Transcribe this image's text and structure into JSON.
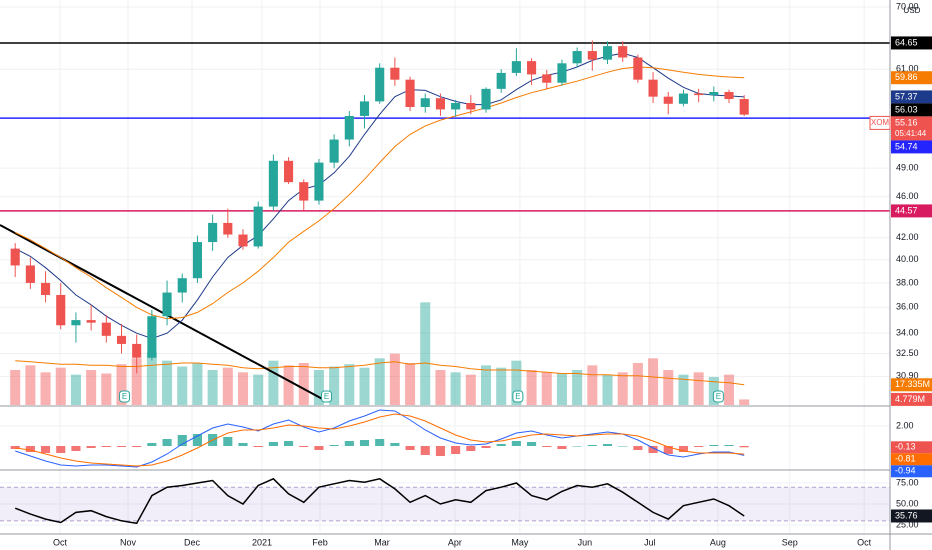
{
  "chart_data": {
    "type": "candlestick",
    "symbol": "XOM",
    "currency": "USD",
    "countdown": "05:41:44",
    "xlim": [
      -1,
      57.6
    ],
    "xticks": [
      {
        "value": 2.95,
        "label": "Oct"
      },
      {
        "value": 7.43,
        "label": "Nov"
      },
      {
        "value": 11.64,
        "label": "Dec"
      },
      {
        "value": 16.25,
        "label": "2021"
      },
      {
        "value": 20.07,
        "label": "Feb"
      },
      {
        "value": 24.15,
        "label": "Mar"
      },
      {
        "value": 28.95,
        "label": "Apr"
      },
      {
        "value": 33.23,
        "label": "May"
      },
      {
        "value": 37.51,
        "label": "Jun"
      },
      {
        "value": 41.79,
        "label": "Jul"
      },
      {
        "value": 46.27,
        "label": "Aug"
      },
      {
        "value": 51.0,
        "label": "Sep"
      },
      {
        "value": 55.9,
        "label": "Oct"
      }
    ],
    "grid": true,
    "price": {
      "ylim": [
        29.0,
        71.1
      ],
      "log": true,
      "yticks": [
        {
          "value": 70,
          "label": "70.00"
        },
        {
          "value": 61,
          "label": "61.00"
        },
        {
          "value": 49,
          "label": "49.00"
        },
        {
          "value": 46,
          "label": "46.00"
        },
        {
          "value": 42,
          "label": "42.00"
        },
        {
          "value": 40,
          "label": "40.00"
        },
        {
          "value": 38,
          "label": "38.00"
        },
        {
          "value": 36,
          "label": "36.00"
        },
        {
          "value": 34,
          "label": "34.00"
        },
        {
          "value": 32.5,
          "label": "32.50"
        },
        {
          "value": 30.9,
          "label": "30.90"
        }
      ],
      "up_color": "#26a69a",
      "down_color": "#ef5350",
      "last_color": "#ef5350",
      "open": [
        41,
        39.5,
        38.0,
        37.0,
        34.6,
        35.0,
        34.8,
        33.8,
        33.2,
        32.2,
        35.3,
        37.2,
        38.4,
        41.6,
        43.4,
        42.3,
        41.2,
        45.0,
        49.8,
        47.5,
        45.6,
        49.6,
        52.2,
        55.0,
        56.8,
        61.2,
        59.6,
        56.1,
        57.2,
        55.8,
        56.6,
        55.8,
        58.4,
        60.5,
        62.1,
        60.3,
        59.2,
        61.8,
        63.5,
        62.3,
        64.2,
        62.6,
        59.6,
        57.4,
        56.5,
        57.8,
        57.6,
        58.0,
        57.1
      ],
      "high": [
        41.5,
        40.2,
        39.0,
        38.0,
        35.6,
        36.2,
        35.4,
        34.7,
        33.9,
        35.8,
        38.2,
        38.8,
        42.2,
        44.2,
        44.8,
        42.8,
        45.5,
        50.5,
        50.2,
        47.8,
        50.0,
        52.8,
        55.6,
        57.6,
        61.8,
        62.6,
        60.0,
        57.8,
        57.8,
        57.0,
        57.6,
        58.6,
        61.0,
        63.9,
        62.5,
        60.9,
        62.3,
        64.0,
        65.0,
        64.9,
        64.9,
        63.0,
        60.6,
        58.0,
        58.3,
        58.4,
        58.7,
        58.3,
        57.6
      ],
      "low": [
        38.5,
        37.5,
        36.4,
        34.3,
        33.3,
        34.2,
        33.3,
        32.5,
        31.1,
        32.0,
        34.6,
        36.4,
        38.0,
        40.8,
        42.0,
        40.9,
        41.0,
        44.6,
        47.3,
        44.6,
        45.2,
        49.0,
        51.4,
        53.5,
        56.5,
        58.8,
        55.6,
        55.4,
        55.0,
        54.9,
        55.2,
        55.4,
        57.9,
        60.1,
        58.9,
        58.4,
        58.8,
        61.3,
        60.8,
        61.7,
        62.0,
        59.2,
        56.6,
        55.2,
        56.2,
        56.7,
        56.8,
        56.6,
        55.0
      ],
      "close": [
        39.5,
        38.0,
        37.0,
        34.6,
        35.0,
        34.8,
        33.8,
        33.2,
        32.2,
        35.3,
        37.2,
        38.4,
        41.6,
        43.4,
        42.3,
        41.2,
        45.0,
        49.8,
        47.5,
        45.6,
        49.6,
        52.2,
        55.0,
        56.8,
        61.2,
        59.6,
        56.1,
        57.2,
        55.8,
        56.6,
        55.8,
        58.4,
        60.5,
        62.1,
        60.3,
        59.2,
        61.8,
        63.5,
        62.3,
        64.2,
        62.6,
        59.6,
        57.4,
        56.5,
        57.8,
        57.6,
        58.0,
        57.1,
        55.16
      ]
    },
    "moving_averages": [
      {
        "color": "#1e3a8a",
        "values": [
          41,
          40.3,
          39.3,
          38.2,
          37.0,
          36.2,
          35.3,
          34.6,
          34.0,
          33.6,
          34.0,
          35.0,
          36.6,
          38.5,
          40.2,
          41.3,
          42.2,
          43.8,
          45.6,
          46.8,
          47.2,
          48.5,
          50.3,
          52.8,
          55.2,
          57.4,
          58.3,
          58.2,
          57.4,
          56.8,
          56.4,
          56.4,
          57.0,
          58.3,
          59.5,
          60.2,
          60.6,
          61.3,
          62.2,
          62.8,
          63.2,
          62.6,
          61.2,
          59.8,
          58.6,
          57.8,
          57.6,
          57.5,
          57.37
        ]
      },
      {
        "color": "#f57c00",
        "values": [
          42.5,
          41.8,
          41.0,
          40.2,
          39.3,
          38.5,
          37.6,
          36.8,
          36.0,
          35.4,
          35.1,
          35.2,
          35.6,
          36.3,
          37.2,
          38.0,
          39.0,
          40.2,
          41.6,
          42.6,
          43.6,
          44.8,
          46.2,
          47.8,
          49.6,
          51.4,
          52.8,
          53.8,
          54.5,
          55.0,
          55.5,
          56.0,
          56.6,
          57.3,
          57.9,
          58.4,
          58.9,
          59.4,
          60.0,
          60.6,
          61.1,
          61.3,
          61.2,
          60.9,
          60.6,
          60.3,
          60.1,
          59.95,
          59.86
        ]
      }
    ],
    "hlines": [
      {
        "value": 64.65,
        "color": "#000000"
      },
      {
        "value": 54.74,
        "color": "#2424ff"
      },
      {
        "value": 44.57,
        "color": "#d81b60"
      }
    ],
    "price_tags": [
      {
        "value": 56.03,
        "color": "#000000"
      }
    ],
    "trendline": {
      "x": [
        -1,
        20.4
      ],
      "values": [
        43.2,
        29.3
      ],
      "color": "#000000"
    },
    "earnings": [
      {
        "x": 7.2,
        "label": "E"
      },
      {
        "x": 20.5,
        "label": "E"
      },
      {
        "x": 33.1,
        "label": "E"
      },
      {
        "x": 46.3,
        "label": "E"
      }
    ],
    "volume": {
      "ylim": [
        0,
        90
      ],
      "values": [
        30,
        34,
        28,
        32,
        26,
        30,
        27,
        35,
        40,
        45,
        38,
        33,
        36,
        30,
        32,
        28,
        26,
        38,
        34,
        36,
        30,
        33,
        35,
        32,
        40,
        44,
        36,
        88,
        30,
        28,
        26,
        34,
        32,
        38,
        30,
        28,
        27,
        30,
        34,
        26,
        28,
        36,
        40,
        30,
        26,
        28,
        24,
        26,
        4.779
      ],
      "last_value_label": "4.779M",
      "last_color": "#ef5350",
      "ma": {
        "color": "#f57c00",
        "last_value_label": "17.335M",
        "values": [
          38,
          37,
          36,
          35,
          35,
          34,
          34,
          33,
          33,
          34,
          35,
          36,
          36,
          35,
          34,
          32,
          31,
          32,
          33,
          33,
          32,
          32,
          33,
          34,
          36,
          37,
          35,
          36,
          34,
          33,
          31,
          30,
          30,
          30,
          29,
          28,
          27,
          27,
          26,
          26,
          25,
          25,
          24,
          23,
          22,
          21,
          20,
          19,
          17.335
        ]
      }
    },
    "macd": {
      "ylim": [
        -2.3,
        3.9
      ],
      "yticks": [
        {
          "value": 2,
          "label": "2.00"
        }
      ],
      "macd": {
        "color": "#2962ff",
        "values": [
          -0.5,
          -1.0,
          -1.5,
          -1.9,
          -2.0,
          -1.9,
          -1.9,
          -2.0,
          -2.1,
          -1.6,
          -0.8,
          0.2,
          1.0,
          1.8,
          2.2,
          1.9,
          1.5,
          2.2,
          2.6,
          1.9,
          1.4,
          1.8,
          2.5,
          3.0,
          3.6,
          3.5,
          2.6,
          1.6,
          0.8,
          0.3,
          0.1,
          0.2,
          0.7,
          1.3,
          1.5,
          1.1,
          0.8,
          1.0,
          1.2,
          1.4,
          1.2,
          0.6,
          -0.2,
          -0.9,
          -1.1,
          -0.8,
          -0.6,
          -0.6,
          -0.94
        ]
      },
      "signal": {
        "color": "#ff6d00",
        "values": [
          -0.2,
          -0.4,
          -0.8,
          -1.2,
          -1.5,
          -1.7,
          -1.8,
          -1.9,
          -2.0,
          -1.9,
          -1.5,
          -0.9,
          -0.2,
          0.6,
          1.3,
          1.6,
          1.6,
          1.8,
          2.1,
          2.0,
          1.8,
          1.7,
          2.0,
          2.4,
          2.9,
          3.2,
          3.0,
          2.5,
          1.8,
          1.1,
          0.6,
          0.4,
          0.5,
          0.8,
          1.1,
          1.2,
          1.1,
          1.0,
          1.1,
          1.2,
          1.2,
          1.0,
          0.5,
          -0.1,
          -0.5,
          -0.7,
          -0.7,
          -0.7,
          -0.81
        ]
      },
      "histogram": {
        "up_color": "#26a69a",
        "down_color": "#ef5350",
        "values": [
          -0.3,
          -0.6,
          -0.7,
          -0.7,
          -0.5,
          -0.2,
          -0.1,
          -0.1,
          -0.1,
          0.3,
          0.7,
          1.1,
          1.2,
          1.2,
          0.9,
          0.3,
          -0.1,
          0.4,
          0.5,
          -0.1,
          -0.4,
          0.1,
          0.5,
          0.6,
          0.7,
          0.3,
          -0.4,
          -0.9,
          -1.0,
          -0.8,
          -0.5,
          -0.2,
          0.2,
          0.5,
          0.4,
          -0.1,
          -0.3,
          0,
          0.1,
          0.2,
          0,
          -0.4,
          -0.7,
          -0.8,
          -0.6,
          -0.1,
          0.1,
          0.1,
          -0.13
        ]
      }
    },
    "rsi": {
      "ylim": [
        15.5,
        88.1
      ],
      "yticks": [
        {
          "value": 75,
          "label": "75.00"
        },
        {
          "value": 50,
          "label": "50.00"
        },
        {
          "value": 25,
          "label": "25.00"
        }
      ],
      "band": [
        30,
        70
      ],
      "color": "#000000",
      "values": [
        45,
        38,
        32,
        28,
        40,
        42,
        35,
        30,
        27,
        60,
        70,
        72,
        75,
        78,
        60,
        50,
        72,
        80,
        62,
        52,
        70,
        74,
        78,
        76,
        80,
        68,
        52,
        60,
        50,
        55,
        52,
        66,
        70,
        75,
        60,
        55,
        65,
        72,
        70,
        74,
        64,
        52,
        40,
        32,
        48,
        52,
        56,
        48,
        35.76
      ]
    }
  }
}
